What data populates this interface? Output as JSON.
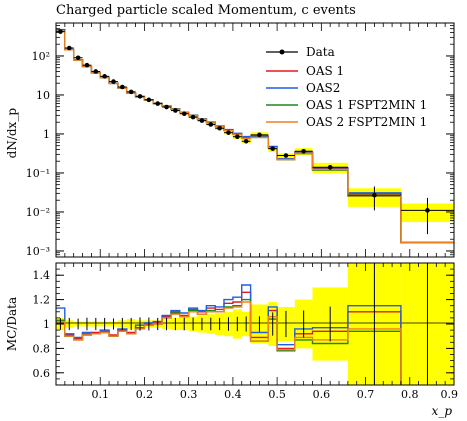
{
  "title": "Charged particle scaled Momentum, c events",
  "chart_data": {
    "type": "line",
    "title": "Charged particle scaled Momentum, c events",
    "main": {
      "ylabel": "dN/dx_p",
      "yscale": "log",
      "ylim": [
        0.0007,
        700
      ],
      "yticks": [
        {
          "value": 0.001,
          "label": "10⁻³"
        },
        {
          "value": 0.01,
          "label": "10⁻²"
        },
        {
          "value": 0.1,
          "label": "10⁻¹"
        },
        {
          "value": 1,
          "label": "1"
        },
        {
          "value": 10,
          "label": "10"
        },
        {
          "value": 100,
          "label": "10²"
        }
      ]
    },
    "ratio": {
      "ylabel": "MC/Data",
      "ylim": [
        0.5,
        1.5
      ],
      "yticks": [
        0.6,
        0.8,
        1,
        1.2,
        1.4
      ],
      "ytick_labels": [
        "0.6",
        "0.8",
        "1",
        "1.2",
        "1.4"
      ]
    },
    "xlabel": "x_p",
    "xlim": [
      0,
      0.9
    ],
    "xticks": [
      0.1,
      0.2,
      0.3,
      0.4,
      0.5,
      0.6,
      0.7,
      0.8,
      0.9
    ],
    "xtick_labels": [
      "0.1",
      "0.2",
      "0.3",
      "0.4",
      "0.5",
      "0.6",
      "0.7",
      "0.8",
      "0.9"
    ],
    "legend_position": "top-right",
    "bin_edges": [
      0,
      0.02,
      0.04,
      0.06,
      0.08,
      0.1,
      0.12,
      0.14,
      0.16,
      0.18,
      0.2,
      0.22,
      0.24,
      0.26,
      0.28,
      0.3,
      0.32,
      0.34,
      0.36,
      0.38,
      0.4,
      0.42,
      0.44,
      0.48,
      0.5,
      0.54,
      0.58,
      0.66,
      0.78,
      0.9
    ],
    "data": {
      "name": "Data",
      "x": [
        0.01,
        0.03,
        0.05,
        0.07,
        0.09,
        0.11,
        0.13,
        0.15,
        0.17,
        0.19,
        0.21,
        0.23,
        0.25,
        0.27,
        0.29,
        0.31,
        0.33,
        0.35,
        0.37,
        0.39,
        0.41,
        0.43,
        0.46,
        0.49,
        0.52,
        0.56,
        0.62,
        0.72,
        0.84
      ],
      "y": [
        420,
        160,
        90,
        58,
        40,
        30,
        22,
        16,
        12,
        9.2,
        7.5,
        6,
        4.9,
        4,
        3.3,
        2.7,
        2.2,
        1.75,
        1.4,
        1.08,
        0.85,
        0.65,
        0.95,
        0.42,
        0.28,
        0.36,
        0.14,
        0.027,
        0.011
      ],
      "yerr_low": [
        20,
        8,
        4,
        3,
        2,
        1.5,
        1,
        0.8,
        0.6,
        0.5,
        0.4,
        0.3,
        0.25,
        0.2,
        0.17,
        0.14,
        0.11,
        0.09,
        0.07,
        0.06,
        0.05,
        0.04,
        0.06,
        0.04,
        0.03,
        0.04,
        0.02,
        0.016,
        0.0083
      ],
      "yerr_high": [
        20,
        8,
        4,
        3,
        2,
        1.5,
        1,
        0.8,
        0.6,
        0.5,
        0.4,
        0.3,
        0.25,
        0.2,
        0.17,
        0.14,
        0.11,
        0.09,
        0.07,
        0.06,
        0.05,
        0.04,
        0.06,
        0.04,
        0.03,
        0.04,
        0.02,
        0.018,
        0.012
      ]
    },
    "band_rel_err": [
      0.05,
      0.03,
      0.02,
      0.02,
      0.02,
      0.02,
      0.02,
      0.03,
      0.04,
      0.03,
      0.03,
      0.03,
      0.04,
      0.05,
      0.05,
      0.06,
      0.07,
      0.08,
      0.09,
      0.1,
      0.12,
      0.1,
      0.16,
      0.18,
      0.14,
      0.2,
      0.3,
      0.5,
      0.5
    ],
    "series": [
      {
        "name": "OAS 1",
        "color": "#e31a1c",
        "ratio": [
          1.02,
          0.91,
          0.88,
          0.92,
          0.93,
          0.94,
          0.91,
          0.95,
          0.93,
          0.97,
          1.0,
          1.01,
          1.06,
          1.1,
          1.07,
          1.12,
          1.1,
          1.13,
          1.12,
          1.17,
          1.18,
          1.26,
          0.89,
          1.11,
          0.8,
          0.92,
          0.94,
          1.1,
          0.0
        ]
      },
      {
        "name": "OAS2",
        "color": "#1f5fe0",
        "ratio": [
          1.13,
          0.92,
          0.89,
          0.93,
          0.92,
          0.95,
          0.9,
          0.96,
          0.92,
          0.99,
          1.01,
          1.02,
          1.07,
          1.11,
          1.09,
          1.13,
          1.11,
          1.15,
          1.14,
          1.2,
          1.22,
          1.32,
          0.93,
          1.14,
          0.83,
          0.96,
          0.97,
          1.15,
          0.0
        ]
      },
      {
        "name": "OAS 1 FSPT2MIN 1",
        "color": "#1a8a1a",
        "ratio": [
          1.03,
          0.9,
          0.87,
          0.91,
          0.92,
          0.93,
          0.9,
          0.94,
          0.92,
          0.97,
          0.99,
          1.0,
          1.05,
          1.09,
          1.06,
          1.11,
          1.08,
          1.11,
          1.1,
          1.14,
          1.15,
          1.2,
          0.86,
          1.04,
          0.78,
          0.87,
          0.84,
          0.94,
          0.0
        ]
      },
      {
        "name": "OAS 2 FSPT2MIN 1",
        "color": "#f08020",
        "ratio": [
          1.02,
          0.9,
          0.87,
          0.91,
          0.92,
          0.93,
          0.9,
          0.94,
          0.92,
          0.96,
          0.99,
          1.0,
          1.05,
          1.08,
          1.06,
          1.1,
          1.08,
          1.1,
          1.1,
          1.13,
          1.14,
          1.18,
          0.86,
          1.06,
          0.79,
          0.89,
          0.87,
          0.96,
          0.0
        ]
      }
    ]
  }
}
